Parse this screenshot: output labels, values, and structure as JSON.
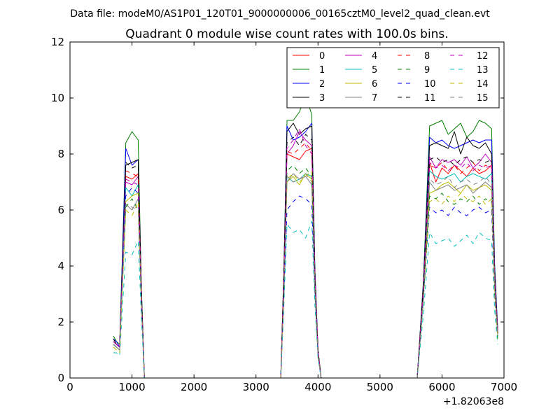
{
  "figure": {
    "suptitle": "Data file: modeM0/AS1P01_120T01_9000000006_00165cztM0_level2_quad_clean.evt",
    "x_offset_label": "+1.82063e8"
  },
  "chart_data": {
    "type": "line",
    "title": "Quadrant 0 module wise count rates with 100.0s bins.",
    "xlabel": "",
    "ylabel": "",
    "xlim": [
      0,
      7000
    ],
    "ylim": [
      0,
      12
    ],
    "x_ticks": [
      0,
      1000,
      2000,
      3000,
      4000,
      5000,
      6000,
      7000
    ],
    "y_ticks": [
      0,
      2,
      4,
      6,
      8,
      10,
      12
    ],
    "x_tick_labels": [
      "0",
      "1000",
      "2000",
      "3000",
      "4000",
      "5000",
      "6000",
      "7000"
    ],
    "y_tick_labels": [
      "0",
      "2",
      "4",
      "6",
      "8",
      "10",
      "12"
    ],
    "grid": false,
    "legend_position": "top-right",
    "legend_columns": 4,
    "x": [
      700,
      750,
      800,
      900,
      1000,
      1100,
      1150,
      1200,
      1250,
      1300,
      1400,
      1500,
      1600,
      1700,
      1800,
      1900,
      2000,
      2100,
      2200,
      2300,
      2400,
      2500,
      2600,
      2700,
      2800,
      2900,
      3000,
      3100,
      3200,
      3300,
      3350,
      3400,
      3450,
      3500,
      3600,
      3700,
      3800,
      3900,
      3950,
      4000,
      4050,
      4100,
      4200,
      4300,
      4400,
      4500,
      4600,
      4700,
      4800,
      4900,
      5000,
      5100,
      5200,
      5300,
      5400,
      5500,
      5600,
      5700,
      5800,
      5900,
      6000,
      6100,
      6200,
      6300,
      6400,
      6500,
      6600,
      6700,
      6800,
      6850,
      6900
    ],
    "series": [
      {
        "name": "0",
        "color": "#ff0000",
        "dash": false,
        "values": [
          1.3,
          1.2,
          1.1,
          7.2,
          7.1,
          7.3,
          3.0,
          0,
          0,
          0,
          0,
          0,
          0,
          0,
          0,
          0,
          0,
          0,
          0,
          0,
          0,
          0,
          0,
          0,
          0,
          0,
          0,
          0,
          0,
          0,
          0,
          0,
          3.5,
          8.0,
          7.9,
          7.8,
          8.1,
          8.2,
          3.6,
          1.0,
          0,
          0,
          0,
          0,
          0,
          0,
          0,
          0,
          0,
          0,
          0,
          0,
          0,
          0,
          0,
          0,
          0,
          3.2,
          7.7,
          7.0,
          7.5,
          7.3,
          7.6,
          7.4,
          7.2,
          7.5,
          7.3,
          7.4,
          7.6,
          3.5,
          1.6
        ]
      },
      {
        "name": "1",
        "color": "#008000",
        "dash": false,
        "values": [
          1.5,
          1.3,
          1.2,
          8.4,
          8.8,
          8.5,
          3.3,
          0,
          0,
          0,
          0,
          0,
          0,
          0,
          0,
          0,
          0,
          0,
          0,
          0,
          0,
          0,
          0,
          0,
          0,
          0,
          0,
          0,
          0,
          0,
          0,
          0,
          4.0,
          9.2,
          9.2,
          9.5,
          10.1,
          9.4,
          3.9,
          1.0,
          0,
          0,
          0,
          0,
          0,
          0,
          0,
          0,
          0,
          0,
          0,
          0,
          0,
          0,
          0,
          0,
          0,
          3.5,
          9.0,
          9.1,
          9.2,
          8.7,
          8.9,
          9.1,
          8.6,
          8.8,
          9.2,
          9.1,
          8.9,
          4.0,
          1.7
        ]
      },
      {
        "name": "2",
        "color": "#0000ff",
        "dash": false,
        "values": [
          1.4,
          1.3,
          1.1,
          8.2,
          7.6,
          7.8,
          3.2,
          0,
          0,
          0,
          0,
          0,
          0,
          0,
          0,
          0,
          0,
          0,
          0,
          0,
          0,
          0,
          0,
          0,
          0,
          0,
          0,
          0,
          0,
          0,
          0,
          0,
          3.8,
          9.0,
          8.5,
          8.6,
          8.8,
          9.1,
          3.8,
          1.0,
          0,
          0,
          0,
          0,
          0,
          0,
          0,
          0,
          0,
          0,
          0,
          0,
          0,
          0,
          0,
          0,
          0,
          3.4,
          8.6,
          8.4,
          8.5,
          8.3,
          8.2,
          8.3,
          8.4,
          8.5,
          8.4,
          8.5,
          8.5,
          3.9,
          1.7
        ]
      },
      {
        "name": "3",
        "color": "#000000",
        "dash": false,
        "values": [
          1.4,
          1.2,
          1.1,
          7.6,
          7.7,
          7.8,
          3.2,
          0,
          0,
          0,
          0,
          0,
          0,
          0,
          0,
          0,
          0,
          0,
          0,
          0,
          0,
          0,
          0,
          0,
          0,
          0,
          0,
          0,
          0,
          0,
          0,
          0,
          3.7,
          8.8,
          9.1,
          8.7,
          8.9,
          9.0,
          3.7,
          1.0,
          0,
          0,
          0,
          0,
          0,
          0,
          0,
          0,
          0,
          0,
          0,
          0,
          0,
          0,
          0,
          0,
          0,
          3.3,
          8.3,
          8.4,
          8.3,
          8.2,
          8.8,
          8.0,
          8.6,
          8.3,
          8.2,
          8.4,
          8.0,
          3.8,
          1.6
        ]
      },
      {
        "name": "4",
        "color": "#bf00bf",
        "dash": false,
        "values": [
          1.3,
          1.2,
          1.1,
          7.0,
          6.9,
          7.2,
          3.0,
          0,
          0,
          0,
          0,
          0,
          0,
          0,
          0,
          0,
          0,
          0,
          0,
          0,
          0,
          0,
          0,
          0,
          0,
          0,
          0,
          0,
          0,
          0,
          0,
          0,
          3.5,
          8.0,
          8.3,
          8.8,
          8.5,
          8.3,
          3.6,
          0.9,
          0,
          0,
          0,
          0,
          0,
          0,
          0,
          0,
          0,
          0,
          0,
          0,
          0,
          0,
          0,
          0,
          0,
          3.2,
          7.9,
          7.5,
          7.8,
          7.7,
          7.8,
          7.6,
          7.9,
          7.5,
          7.7,
          8.0,
          7.7,
          3.6,
          1.6
        ]
      },
      {
        "name": "5",
        "color": "#00bfbf",
        "dash": false,
        "values": [
          1.2,
          1.1,
          1.0,
          6.8,
          6.5,
          6.9,
          2.8,
          0,
          0,
          0,
          0,
          0,
          0,
          0,
          0,
          0,
          0,
          0,
          0,
          0,
          0,
          0,
          0,
          0,
          0,
          0,
          0,
          0,
          0,
          0,
          0,
          0,
          3.2,
          7.2,
          7.0,
          7.1,
          7.3,
          7.2,
          3.3,
          0.9,
          0,
          0,
          0,
          0,
          0,
          0,
          0,
          0,
          0,
          0,
          0,
          0,
          0,
          0,
          0,
          0,
          0,
          3.0,
          7.4,
          7.2,
          7.1,
          7.2,
          7.3,
          7.0,
          7.2,
          7.3,
          7.2,
          7.1,
          7.3,
          3.4,
          1.5
        ]
      },
      {
        "name": "6",
        "color": "#bfbf00",
        "dash": false,
        "values": [
          1.2,
          1.1,
          1.0,
          6.3,
          6.5,
          6.6,
          2.8,
          0,
          0,
          0,
          0,
          0,
          0,
          0,
          0,
          0,
          0,
          0,
          0,
          0,
          0,
          0,
          0,
          0,
          0,
          0,
          0,
          0,
          0,
          0,
          0,
          0,
          3.1,
          7.0,
          7.2,
          6.9,
          7.3,
          7.1,
          3.2,
          0.9,
          0,
          0,
          0,
          0,
          0,
          0,
          0,
          0,
          0,
          0,
          0,
          0,
          0,
          0,
          0,
          0,
          0,
          2.9,
          6.6,
          6.7,
          6.9,
          7.0,
          6.8,
          6.6,
          6.9,
          6.7,
          6.8,
          6.9,
          6.7,
          3.2,
          1.5
        ]
      },
      {
        "name": "7",
        "color": "#808080",
        "dash": false,
        "values": [
          1.2,
          1.1,
          1.0,
          6.2,
          6.0,
          6.4,
          2.7,
          0,
          0,
          0,
          0,
          0,
          0,
          0,
          0,
          0,
          0,
          0,
          0,
          0,
          0,
          0,
          0,
          0,
          0,
          0,
          0,
          0,
          0,
          0,
          0,
          0,
          3.0,
          7.0,
          7.3,
          7.1,
          7.2,
          6.9,
          3.2,
          0.8,
          0,
          0,
          0,
          0,
          0,
          0,
          0,
          0,
          0,
          0,
          0,
          0,
          0,
          0,
          0,
          0,
          0,
          2.9,
          7.0,
          6.7,
          6.8,
          6.9,
          6.7,
          6.8,
          6.9,
          6.6,
          6.8,
          7.0,
          6.8,
          3.2,
          1.5
        ]
      },
      {
        "name": "8",
        "color": "#ff0000",
        "dash": true,
        "values": [
          1.3,
          1.2,
          1.1,
          7.4,
          7.3,
          7.2,
          3.0,
          0,
          0,
          0,
          0,
          0,
          0,
          0,
          0,
          0,
          0,
          0,
          0,
          0,
          0,
          0,
          0,
          0,
          0,
          0,
          0,
          0,
          0,
          0,
          0,
          0,
          3.6,
          8.1,
          8.0,
          8.2,
          8.4,
          8.1,
          3.6,
          1.0,
          0,
          0,
          0,
          0,
          0,
          0,
          0,
          0,
          0,
          0,
          0,
          0,
          0,
          0,
          0,
          0,
          0,
          3.2,
          7.6,
          7.5,
          7.7,
          7.4,
          7.6,
          7.3,
          7.5,
          7.7,
          7.4,
          7.6,
          7.5,
          3.5,
          1.6
        ]
      },
      {
        "name": "9",
        "color": "#008000",
        "dash": true,
        "values": [
          1.2,
          1.1,
          1.0,
          6.1,
          6.4,
          6.0,
          2.7,
          0,
          0,
          0,
          0,
          0,
          0,
          0,
          0,
          0,
          0,
          0,
          0,
          0,
          0,
          0,
          0,
          0,
          0,
          0,
          0,
          0,
          0,
          0,
          0,
          0,
          3.1,
          7.4,
          7.6,
          7.3,
          7.5,
          7.2,
          3.3,
          0.9,
          0,
          0,
          0,
          0,
          0,
          0,
          0,
          0,
          0,
          0,
          0,
          0,
          0,
          0,
          0,
          0,
          0,
          2.9,
          6.5,
          6.4,
          6.6,
          6.3,
          6.2,
          6.4,
          6.3,
          6.5,
          6.2,
          6.4,
          6.3,
          3.0,
          1.4
        ]
      },
      {
        "name": "10",
        "color": "#0000ff",
        "dash": true,
        "values": [
          1.2,
          1.1,
          1.0,
          6.5,
          6.8,
          6.6,
          2.8,
          0,
          0,
          0,
          0,
          0,
          0,
          0,
          0,
          0,
          0,
          0,
          0,
          0,
          0,
          0,
          0,
          0,
          0,
          0,
          0,
          0,
          0,
          0,
          0,
          0,
          3.0,
          6.0,
          6.3,
          6.5,
          6.4,
          6.2,
          3.0,
          0.9,
          0,
          0,
          0,
          0,
          0,
          0,
          0,
          0,
          0,
          0,
          0,
          0,
          0,
          0,
          0,
          0,
          0,
          2.8,
          6.1,
          5.9,
          6.0,
          5.8,
          6.1,
          5.9,
          5.8,
          6.0,
          6.1,
          5.9,
          6.0,
          2.9,
          1.4
        ]
      },
      {
        "name": "11",
        "color": "#000000",
        "dash": true,
        "values": [
          1.3,
          1.2,
          1.1,
          7.7,
          7.5,
          7.6,
          3.1,
          0,
          0,
          0,
          0,
          0,
          0,
          0,
          0,
          0,
          0,
          0,
          0,
          0,
          0,
          0,
          0,
          0,
          0,
          0,
          0,
          0,
          0,
          0,
          0,
          0,
          3.6,
          8.4,
          8.6,
          8.3,
          8.7,
          8.5,
          3.7,
          1.0,
          0,
          0,
          0,
          0,
          0,
          0,
          0,
          0,
          0,
          0,
          0,
          0,
          0,
          0,
          0,
          0,
          0,
          3.3,
          7.8,
          7.9,
          7.7,
          7.8,
          7.6,
          7.8,
          7.9,
          7.7,
          7.8,
          7.7,
          7.8,
          3.6,
          1.6
        ]
      },
      {
        "name": "12",
        "color": "#bf00bf",
        "dash": true,
        "values": [
          1.3,
          1.2,
          1.1,
          7.1,
          7.0,
          6.9,
          2.9,
          0,
          0,
          0,
          0,
          0,
          0,
          0,
          0,
          0,
          0,
          0,
          0,
          0,
          0,
          0,
          0,
          0,
          0,
          0,
          0,
          0,
          0,
          0,
          0,
          0,
          3.5,
          8.2,
          8.5,
          8.9,
          8.3,
          8.0,
          3.6,
          1.0,
          0,
          0,
          0,
          0,
          0,
          0,
          0,
          0,
          0,
          0,
          0,
          0,
          0,
          0,
          0,
          0,
          0,
          3.1,
          7.7,
          7.5,
          7.6,
          7.4,
          7.6,
          7.5,
          7.7,
          7.4,
          7.6,
          7.5,
          7.6,
          3.5,
          1.6
        ]
      },
      {
        "name": "13",
        "color": "#00bfbf",
        "dash": true,
        "values": [
          0.9,
          0.9,
          0.8,
          4.5,
          4.4,
          4.9,
          2.2,
          0,
          0,
          0,
          0,
          0,
          0,
          0,
          0,
          0,
          0,
          0,
          0,
          0,
          0,
          0,
          0,
          0,
          0,
          0,
          0,
          0,
          0,
          0,
          0,
          0,
          2.6,
          5.5,
          5.2,
          5.3,
          5.0,
          5.6,
          2.6,
          0.7,
          0,
          0,
          0,
          0,
          0,
          0,
          0,
          0,
          0,
          0,
          0,
          0,
          0,
          0,
          0,
          0,
          0,
          2.3,
          5.2,
          4.8,
          4.9,
          5.0,
          4.7,
          4.9,
          5.1,
          4.8,
          5.2,
          5.0,
          4.9,
          2.4,
          1.2
        ]
      },
      {
        "name": "14",
        "color": "#bfbf00",
        "dash": true,
        "values": [
          1.1,
          1.0,
          0.9,
          6.0,
          5.8,
          6.3,
          2.7,
          0,
          0,
          0,
          0,
          0,
          0,
          0,
          0,
          0,
          0,
          0,
          0,
          0,
          0,
          0,
          0,
          0,
          0,
          0,
          0,
          0,
          0,
          0,
          0,
          0,
          3.0,
          7.1,
          7.3,
          7.0,
          7.2,
          7.4,
          3.2,
          0.8,
          0,
          0,
          0,
          0,
          0,
          0,
          0,
          0,
          0,
          0,
          0,
          0,
          0,
          0,
          0,
          0,
          0,
          2.8,
          6.3,
          6.4,
          6.2,
          6.5,
          6.3,
          6.6,
          6.4,
          6.3,
          6.5,
          6.2,
          6.4,
          3.0,
          1.4
        ]
      },
      {
        "name": "15",
        "color": "#808080",
        "dash": true,
        "values": [
          1.2,
          1.1,
          1.0,
          6.2,
          6.1,
          6.0,
          2.7,
          0,
          0,
          0,
          0,
          0,
          0,
          0,
          0,
          0,
          0,
          0,
          0,
          0,
          0,
          0,
          0,
          0,
          0,
          0,
          0,
          0,
          0,
          0,
          0,
          0,
          3.0,
          7.2,
          7.0,
          7.1,
          7.3,
          7.0,
          3.2,
          0.8,
          0,
          0,
          0,
          0,
          0,
          0,
          0,
          0,
          0,
          0,
          0,
          0,
          0,
          0,
          0,
          0,
          0,
          2.9,
          7.1,
          6.9,
          7.0,
          7.2,
          6.8,
          7.0,
          7.1,
          6.9,
          7.0,
          7.2,
          6.9,
          3.2,
          1.5
        ]
      }
    ]
  }
}
